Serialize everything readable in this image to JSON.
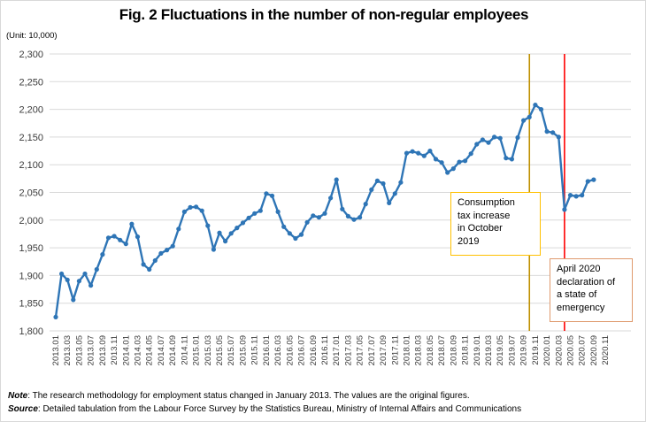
{
  "figure": {
    "title": "Fig. 2 Fluctuations in the number of non-regular employees",
    "unit_label": "(Unit: 10,000)"
  },
  "notes": {
    "note_label": "Note",
    "note_text": ": The research methodology for employment status changed in January 2013. The values are the original figures.",
    "source_label": "Source",
    "source_text": ": Detailed tabulation from the Labour Force Survey by the Statistics Bureau, Ministry of Internal Affairs and Communications"
  },
  "annotations": [
    {
      "id": "tax",
      "lines": [
        "Consumption",
        "tax increase",
        "in October",
        "2019"
      ],
      "border_color": "#FFC000",
      "line_color": "#BF9000",
      "line_month": "2019.10",
      "line_month_index": 81
    },
    {
      "id": "emergency",
      "lines": [
        "April 2020",
        "declaration of",
        "a state of",
        "emergency"
      ],
      "border_color": "#DF9A6E",
      "line_color": "#FF0000",
      "line_month": "2020.04",
      "line_month_index": 87
    }
  ],
  "chart_data": {
    "type": "line",
    "title": "Fig. 2 Fluctuations in the number of non-regular employees",
    "unit": "10,000 persons",
    "frequency": "monthly",
    "x_start": "2013.01",
    "x_end": "2020.09",
    "ylim": [
      1800,
      2300
    ],
    "grid": true,
    "y_tick_labels": [
      "1,800",
      "1,850",
      "1,900",
      "1,950",
      "2,000",
      "2,050",
      "2,100",
      "2,150",
      "2,200",
      "2,250",
      "2,300"
    ],
    "x_tick_labels": [
      "2013.01",
      "2013.03",
      "2013.05",
      "2013.07",
      "2013.09",
      "2013.11",
      "2014.01",
      "2014.03",
      "2014.05",
      "2014.07",
      "2014.09",
      "2014.11",
      "2015.01",
      "2015.03",
      "2015.05",
      "2015.07",
      "2015.09",
      "2015.11",
      "2016.01",
      "2016.03",
      "2016.05",
      "2016.07",
      "2016.09",
      "2016.11",
      "2017.01",
      "2017.03",
      "2017.05",
      "2017.07",
      "2017.09",
      "2017.11",
      "2018.01",
      "2018.03",
      "2018.05",
      "2018.07",
      "2018.09",
      "2018.11",
      "2019.01",
      "2019.03",
      "2019.05",
      "2019.07",
      "2019.09",
      "2019.11",
      "2020.01",
      "2020.03",
      "2020.05",
      "2020.07",
      "2020.09",
      "2020.11"
    ],
    "series": [
      {
        "name": "Number of non-regular employees",
        "color": "#2E75B6",
        "values": [
          1825,
          1903,
          1892,
          1856,
          1890,
          1903,
          1882,
          1911,
          1938,
          1968,
          1971,
          1964,
          1957,
          1993,
          1970,
          1920,
          1911,
          1927,
          1940,
          1946,
          1953,
          1984,
          2015,
          2023,
          2024,
          2017,
          1990,
          1947,
          1977,
          1962,
          1976,
          1986,
          1995,
          2004,
          2012,
          2017,
          2048,
          2044,
          2015,
          1988,
          1976,
          1967,
          1974,
          1996,
          2008,
          2005,
          2012,
          2040,
          2073,
          2020,
          2007,
          2001,
          2005,
          2029,
          2055,
          2071,
          2066,
          2031,
          2048,
          2068,
          2121,
          2124,
          2121,
          2116,
          2125,
          2110,
          2104,
          2086,
          2093,
          2105,
          2107,
          2120,
          2137,
          2145,
          2140,
          2150,
          2148,
          2112,
          2110,
          2149,
          2180,
          2186,
          2208,
          2200,
          2160,
          2158,
          2150,
          2019,
          2045,
          2043,
          2045,
          2070,
          2073
        ]
      }
    ],
    "gridline_color": "#D9D9D9",
    "tick_label_color": "#3B3B3B"
  }
}
